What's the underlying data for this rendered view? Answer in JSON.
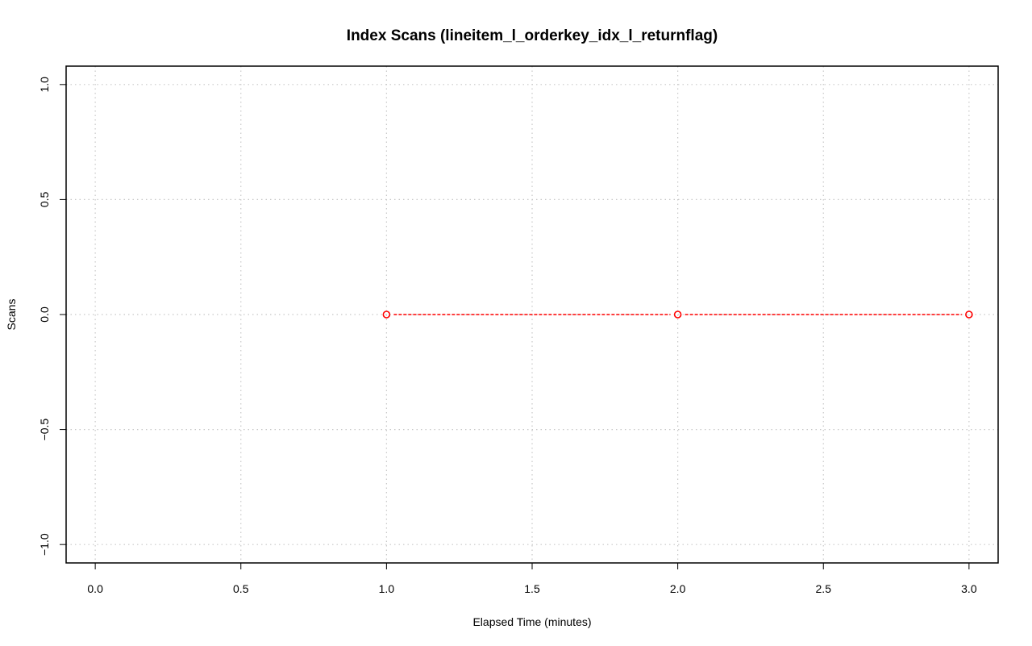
{
  "chart_data": {
    "type": "line",
    "title": "Index Scans (lineitem_l_orderkey_idx_l_returnflag)",
    "xlabel": "Elapsed Time (minutes)",
    "ylabel": "Scans",
    "xlim": [
      -0.1,
      3.1
    ],
    "ylim": [
      -1.08,
      1.08
    ],
    "x_ticks": [
      0.0,
      0.5,
      1.0,
      1.5,
      2.0,
      2.5,
      3.0
    ],
    "x_tick_labels": [
      "0.0",
      "0.5",
      "1.0",
      "1.5",
      "2.0",
      "2.5",
      "3.0"
    ],
    "y_ticks": [
      -1.0,
      -0.5,
      0.0,
      0.5,
      1.0
    ],
    "y_tick_labels": [
      "−1.0",
      "−0.5",
      "0.0",
      "0.5",
      "1.0"
    ],
    "grid": true,
    "grid_style": "dotted",
    "line_style": "dashed",
    "marker": "open-circle",
    "series": [
      {
        "color": "#ff0000",
        "x": [
          1.0,
          2.0,
          3.0
        ],
        "y": [
          0,
          0,
          0
        ]
      }
    ]
  }
}
